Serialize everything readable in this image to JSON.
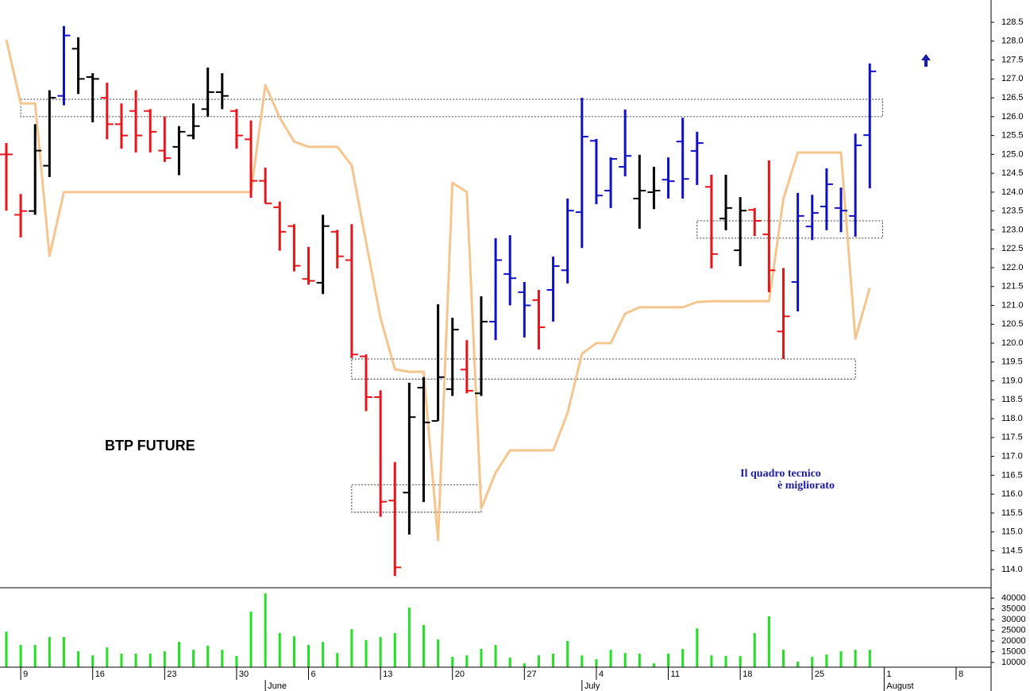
{
  "chart_data": [
    {
      "type": "ohlc",
      "title": "BTP FUTURE",
      "annotation": [
        "Il quadro tecnico",
        "è migliorato"
      ],
      "annotation_color": "#1a1aa8",
      "open": [
        125.0,
        123.4,
        123.5,
        124.7,
        126.55,
        127.8,
        127.05,
        126.5,
        125.8,
        126.15,
        126.15,
        125.1,
        125.2,
        125.5,
        126.2,
        126.65,
        126.15,
        125.4,
        124.3,
        123.6,
        123.1,
        121.7,
        121.6,
        122.95,
        122.2,
        119.65,
        118.57,
        115.83,
        116.04,
        118.82,
        117.94,
        118.78,
        119.3,
        118.67,
        120.57,
        121.83,
        121.35,
        121.14,
        121.41,
        121.93,
        123.47,
        125.36,
        124.04,
        124.67,
        123.83,
        124.0,
        124.33,
        125.34,
        125.09,
        124.14,
        123.3,
        122.46,
        123.53,
        122.88,
        120.31,
        121.62,
        123.09,
        123.62,
        123.58,
        123.37,
        125.51
      ],
      "high": [
        125.3,
        123.95,
        125.8,
        126.7,
        128.4,
        128.1,
        127.15,
        126.9,
        126.35,
        126.7,
        126.2,
        126.0,
        125.75,
        126.35,
        127.3,
        127.15,
        126.2,
        125.9,
        124.65,
        123.75,
        123.15,
        122.55,
        123.4,
        123.0,
        123.15,
        119.7,
        118.75,
        116.85,
        118.95,
        119.1,
        121.03,
        120.67,
        120.08,
        121.24,
        122.78,
        122.86,
        121.62,
        121.41,
        122.29,
        123.83,
        126.5,
        125.41,
        124.92,
        126.19,
        124.99,
        124.67,
        124.92,
        125.97,
        125.6,
        124.46,
        124.46,
        123.87,
        123.58,
        124.84,
        121.99,
        123.98,
        123.93,
        124.63,
        124.12,
        125.55,
        127.41
      ],
      "low": [
        123.51,
        122.8,
        123.4,
        124.4,
        126.3,
        126.6,
        125.85,
        125.4,
        125.15,
        125.05,
        125.05,
        124.8,
        124.45,
        125.4,
        126.0,
        126.2,
        125.15,
        123.85,
        123.7,
        122.45,
        121.9,
        121.55,
        121.3,
        121.98,
        119.6,
        118.2,
        115.4,
        113.83,
        114.93,
        115.79,
        117.94,
        118.6,
        118.67,
        118.6,
        120.08,
        121.0,
        120.15,
        119.83,
        120.57,
        121.58,
        122.52,
        123.68,
        123.58,
        124.42,
        123.03,
        123.55,
        123.83,
        123.83,
        124.19,
        121.98,
        122.99,
        122.04,
        122.84,
        121.35,
        119.58,
        120.84,
        122.73,
        122.99,
        122.94,
        122.82,
        124.1
      ],
      "close": [
        125.0,
        123.5,
        125.1,
        126.5,
        128.15,
        127.0,
        127.0,
        125.8,
        125.5,
        125.5,
        125.6,
        124.9,
        125.6,
        125.75,
        126.65,
        126.55,
        125.5,
        124.3,
        123.7,
        122.95,
        122.05,
        121.65,
        123.1,
        122.3,
        119.7,
        118.57,
        115.8,
        114.06,
        118.04,
        117.9,
        119.1,
        120.36,
        118.74,
        120.57,
        122.2,
        121.72,
        121.0,
        120.42,
        122.04,
        123.51,
        125.47,
        123.91,
        124.88,
        124.96,
        124.04,
        124.04,
        124.29,
        124.35,
        125.3,
        122.36,
        123.58,
        123.51,
        123.24,
        121.93,
        120.71,
        123.37,
        123.45,
        124.21,
        123.51,
        125.24,
        127.2
      ],
      "bar_colors": [
        "#e8141a",
        "#e8141a",
        "#000000",
        "#000000",
        "#1010c8",
        "#000000",
        "#000000",
        "#e8141a",
        "#e8141a",
        "#e8141a",
        "#e8141a",
        "#e8141a",
        "#000000",
        "#000000",
        "#000000",
        "#000000",
        "#e8141a",
        "#e8141a",
        "#e8141a",
        "#e8141a",
        "#e8141a",
        "#e8141a",
        "#000000",
        "#e8141a",
        "#e8141a",
        "#e8141a",
        "#e8141a",
        "#e8141a",
        "#000000",
        "#000000",
        "#000000",
        "#000000",
        "#e8141a",
        "#000000",
        "#1010c8",
        "#1010c8",
        "#1010c8",
        "#e8141a",
        "#1010c8",
        "#1010c8",
        "#1010c8",
        "#1010c8",
        "#1010c8",
        "#1010c8",
        "#000000",
        "#000000",
        "#1010c8",
        "#1010c8",
        "#1010c8",
        "#e8141a",
        "#000000",
        "#000000",
        "#e8141a",
        "#e8141a",
        "#e8141a",
        "#1010c8",
        "#1010c8",
        "#1010c8",
        "#1010c8",
        "#1010c8",
        "#1010c8"
      ],
      "line": {
        "color": "#f6c58e",
        "values": [
          128.04,
          126.35,
          126.35,
          122.31,
          124.0,
          124.0,
          124.0,
          124.0,
          124.0,
          124.0,
          124.0,
          124.0,
          124.0,
          124.0,
          124.0,
          124.0,
          124.0,
          124.0,
          126.84,
          125.97,
          125.34,
          125.2,
          125.2,
          125.2,
          124.71,
          122.67,
          120.67,
          119.31,
          119.24,
          119.24,
          114.78,
          124.25,
          124.0,
          115.62,
          116.57,
          117.16,
          117.16,
          117.16,
          117.16,
          118.15,
          119.72,
          120.0,
          120.0,
          120.78,
          120.95,
          120.95,
          120.95,
          120.95,
          121.09,
          121.11,
          121.11,
          121.11,
          121.11,
          121.11,
          123.83,
          125.05,
          125.05,
          125.05,
          125.05,
          120.12,
          121.47
        ]
      },
      "zones": [
        {
          "x": [
            1,
            60.9
          ],
          "y": [
            126.0,
            126.46
          ]
        },
        {
          "x": [
            48,
            60.9
          ],
          "y": [
            122.78,
            123.24
          ]
        },
        {
          "x": [
            24,
            59
          ],
          "y": [
            119.05,
            119.58
          ]
        },
        {
          "x": [
            24,
            33
          ],
          "y": [
            115.52,
            116.25
          ]
        }
      ],
      "xlim": [
        -0.44,
        68.43
      ],
      "ylim": [
        113.52,
        129.09
      ],
      "yticks": [
        {
          "value": 114,
          "label": "114.0"
        },
        114.5,
        {
          "value": 115,
          "label": "115.0"
        },
        115.5,
        {
          "value": 116,
          "label": "116.0"
        },
        116.5,
        {
          "value": 117,
          "label": "117.0"
        },
        117.5,
        {
          "value": 118,
          "label": "118.0"
        },
        118.5,
        {
          "value": 119,
          "label": "119.0"
        },
        119.5,
        {
          "value": 120,
          "label": "120.0"
        },
        120.5,
        {
          "value": 121,
          "label": "121.0"
        },
        121.5,
        {
          "value": 122,
          "label": "122.0"
        },
        122.5,
        {
          "value": 123,
          "label": "123.0"
        },
        123.5,
        {
          "value": 124,
          "label": "124.0"
        },
        124.5,
        {
          "value": 125,
          "label": "125.0"
        },
        125.5,
        {
          "value": 126,
          "label": "126.0"
        },
        126.5,
        {
          "value": 127,
          "label": "127.0"
        },
        127.5,
        {
          "value": 128,
          "label": "128.0"
        },
        128.5
      ]
    },
    {
      "type": "bar",
      "color": "#22e022",
      "values": [
        24400,
        18150,
        18150,
        21850,
        21850,
        15200,
        13300,
        17000,
        14100,
        14100,
        14100,
        15200,
        19600,
        15900,
        17800,
        15900,
        13000,
        33700,
        42200,
        23700,
        22200,
        18150,
        19600,
        14400,
        25600,
        20400,
        21850,
        23700,
        35600,
        27400,
        20700,
        12600,
        13300,
        16300,
        18150,
        12200,
        9600,
        13300,
        14100,
        20000,
        13300,
        11500,
        15900,
        14400,
        14100,
        9600,
        14100,
        16300,
        25900,
        13300,
        13000,
        13000,
        23700,
        31500,
        15900,
        10400,
        12600,
        13700,
        15200,
        15900,
        15900
      ],
      "xlim": [
        -0.44,
        68.43
      ],
      "ylim": [
        7800,
        44100
      ],
      "yticks": [
        10000,
        15000,
        20000,
        25000,
        30000,
        35000,
        40000
      ],
      "xticks": [
        {
          "value": 1,
          "label": "9"
        },
        {
          "value": 6,
          "label": "16"
        },
        {
          "value": 11,
          "label": "23"
        },
        {
          "value": 16,
          "label": "30"
        },
        {
          "value": 21,
          "label": "6"
        },
        {
          "value": 26,
          "label": "13"
        },
        {
          "value": 31,
          "label": "20"
        },
        {
          "value": 36,
          "label": "27"
        },
        {
          "value": 41,
          "label": "4"
        },
        {
          "value": 46,
          "label": "11"
        },
        {
          "value": 51,
          "label": "18"
        },
        {
          "value": 56,
          "label": "25"
        },
        {
          "value": 61,
          "label": "1"
        },
        {
          "value": 66,
          "label": "8"
        }
      ],
      "month_ticks": [
        {
          "value": 18,
          "label": "June"
        },
        {
          "value": 40,
          "label": "July"
        },
        {
          "value": 61,
          "label": "August"
        }
      ]
    }
  ]
}
